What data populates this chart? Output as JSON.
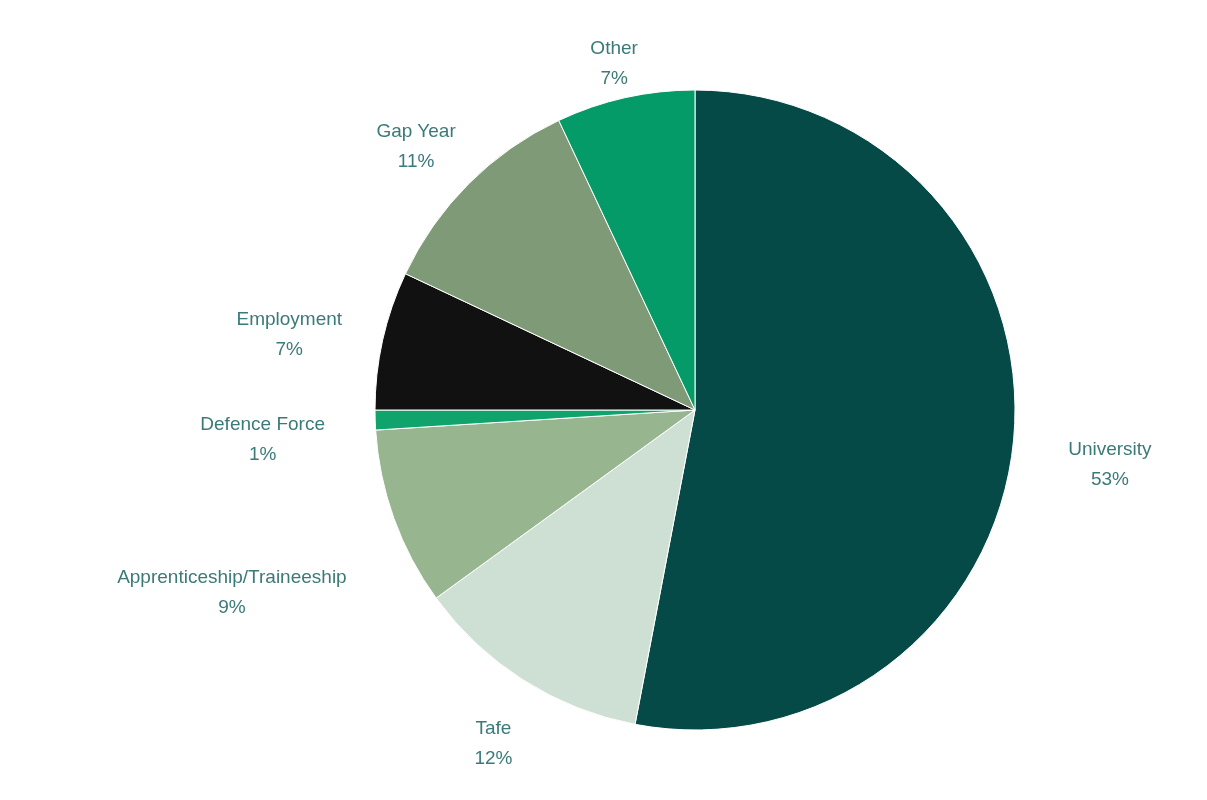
{
  "chart_data": {
    "type": "pie",
    "categories": [
      "University",
      "Tafe",
      "Apprenticeship/Traineeship",
      "Defence Force",
      "Employment",
      "Gap Year",
      "Other"
    ],
    "values": [
      53,
      12,
      9,
      1,
      7,
      11,
      7
    ],
    "value_labels": [
      "53%",
      "12%",
      "9%",
      "1%",
      "7%",
      "11%",
      "7%"
    ],
    "colors": [
      "#054a47",
      "#cde0d3",
      "#97b690",
      "#10a46c",
      "#111111",
      "#7f9a77",
      "#059b68"
    ]
  }
}
